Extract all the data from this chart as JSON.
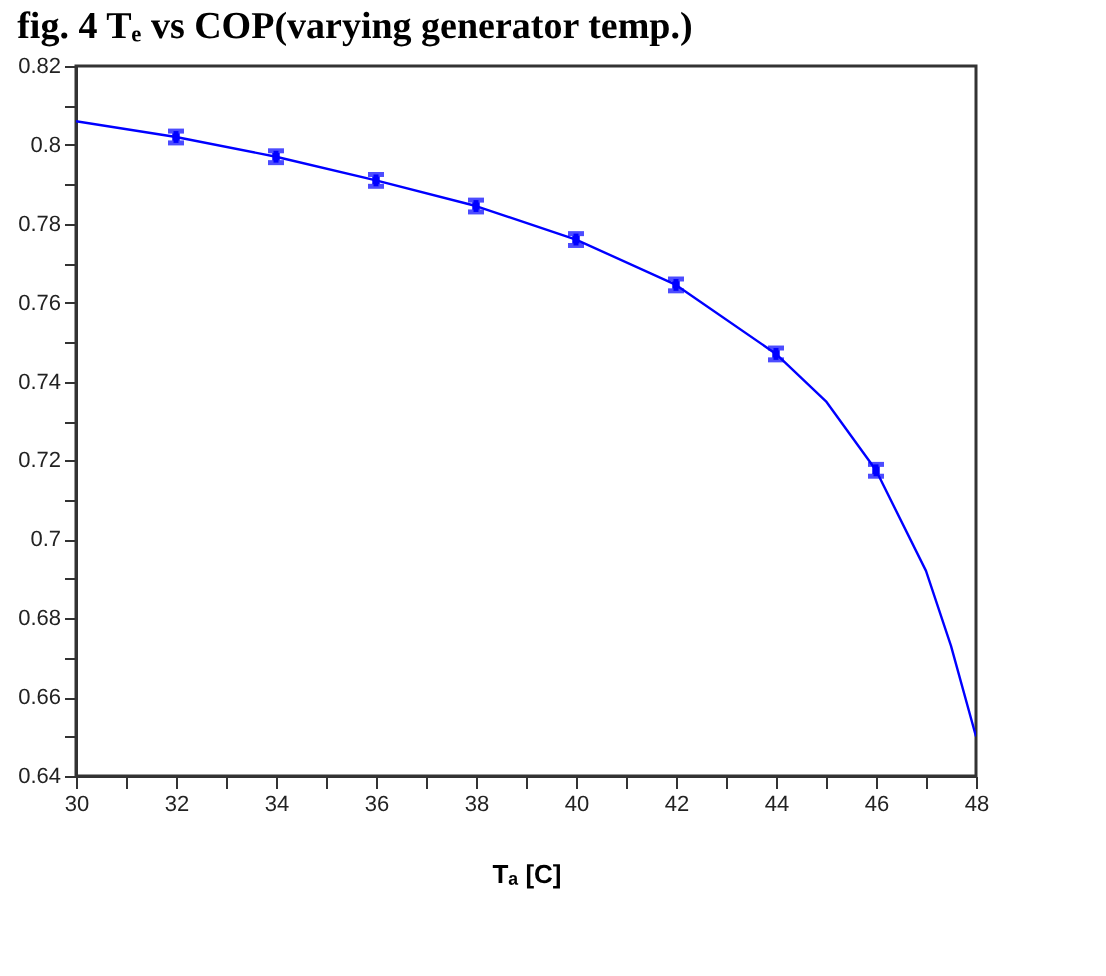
{
  "chart_data": {
    "type": "line",
    "title": "fig. 4 Tₑ vs COP(varying generator temp.)",
    "xlabel": "Tₐ  [C]",
    "xlim": [
      30,
      48
    ],
    "ylim": [
      0.64,
      0.82
    ],
    "xticks": [
      30,
      {
        "value": 31,
        "label": null
      },
      32,
      {
        "value": 33,
        "label": null
      },
      34,
      {
        "value": 35,
        "label": null
      },
      36,
      {
        "value": 37,
        "label": null
      },
      38,
      {
        "value": 39,
        "label": null
      },
      40,
      {
        "value": 41,
        "label": null
      },
      42,
      {
        "value": 43,
        "label": null
      },
      44,
      {
        "value": 45,
        "label": null
      },
      46,
      {
        "value": 47,
        "label": null
      },
      48
    ],
    "yticks": [
      0.64,
      {
        "value": 0.65,
        "label": null
      },
      0.66,
      {
        "value": 0.67,
        "label": null
      },
      0.68,
      {
        "value": 0.69,
        "label": null
      },
      0.7,
      {
        "value": 0.71,
        "label": null
      },
      0.72,
      {
        "value": 0.73,
        "label": null
      },
      0.74,
      {
        "value": 0.75,
        "label": null
      },
      0.76,
      {
        "value": 0.77,
        "label": null
      },
      0.78,
      {
        "value": 0.79,
        "label": null
      },
      0.8,
      {
        "value": 0.81,
        "label": null
      },
      0.82
    ],
    "grid": false,
    "series": [
      {
        "type": "line",
        "color": "#0000ff",
        "x": [
          30,
          32,
          34,
          36,
          38,
          40,
          42,
          44,
          45,
          46,
          47,
          47.5,
          48
        ],
        "values": [
          0.806,
          0.802,
          0.797,
          0.791,
          0.7845,
          0.776,
          0.7645,
          0.747,
          0.735,
          0.7175,
          0.692,
          0.673,
          0.65
        ]
      },
      {
        "type": "scatter",
        "color": "#0000ff",
        "marker": "square",
        "x": [
          32,
          34,
          36,
          38,
          40,
          42,
          44,
          46
        ],
        "values": [
          0.802,
          0.797,
          0.791,
          0.7845,
          0.776,
          0.7645,
          0.747,
          0.7175
        ],
        "errors": [
          0.0015,
          0.0015,
          0.0015,
          0.0015,
          0.0015,
          0.0015,
          0.0015,
          0.0015
        ]
      }
    ]
  }
}
